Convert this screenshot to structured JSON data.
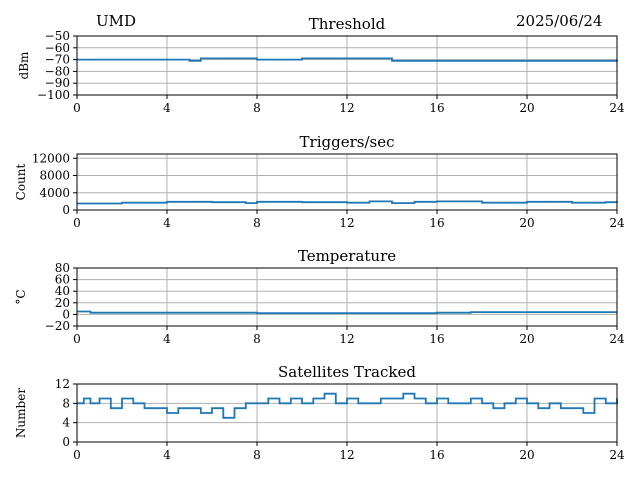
{
  "header": {
    "station": "UMD",
    "date": "2025/06/24"
  },
  "colors": {
    "series": "#1f77b4",
    "grid": "#b0b0b0",
    "axis": "#000000"
  },
  "chart_data": [
    {
      "type": "line",
      "title": "Threshold",
      "xlabel": "",
      "ylabel": "dBm",
      "xlim": [
        0,
        24
      ],
      "ylim": [
        -100,
        -50
      ],
      "xticks": [
        0,
        4,
        8,
        12,
        16,
        20,
        24
      ],
      "yticks": [
        -50,
        -60,
        -70,
        -80,
        -90,
        -100
      ],
      "grid": true,
      "series": [
        {
          "x": [
            0,
            2,
            4,
            5,
            5.5,
            6,
            8,
            10,
            12,
            13,
            14,
            16,
            18,
            20,
            22,
            24
          ],
          "y": [
            -70,
            -70,
            -70,
            -71,
            -69,
            -69,
            -70,
            -69,
            -69,
            -69,
            -71,
            -71,
            -71,
            -71,
            -71,
            -70
          ]
        }
      ]
    },
    {
      "type": "line",
      "title": "Triggers/sec",
      "xlabel": "",
      "ylabel": "Count",
      "xlim": [
        0,
        24
      ],
      "ylim": [
        0,
        13000
      ],
      "xticks": [
        0,
        4,
        8,
        12,
        16,
        20,
        24
      ],
      "yticks": [
        0,
        4000,
        8000,
        12000
      ],
      "grid": true,
      "series": [
        {
          "x": [
            0,
            2,
            4,
            6,
            7.5,
            8,
            10,
            12,
            13,
            14,
            15,
            16,
            18,
            20,
            22,
            23.5,
            24
          ],
          "y": [
            1500,
            1700,
            1900,
            1800,
            1600,
            1900,
            1800,
            1700,
            2000,
            1600,
            1900,
            2000,
            1700,
            1900,
            1700,
            1800,
            1700
          ]
        }
      ]
    },
    {
      "type": "line",
      "title": "Temperature",
      "xlabel": "",
      "ylabel": "°C",
      "xlim": [
        0,
        24
      ],
      "ylim": [
        -20,
        80
      ],
      "xticks": [
        0,
        4,
        8,
        12,
        16,
        20,
        24
      ],
      "yticks": [
        80,
        60,
        40,
        20,
        0,
        -20
      ],
      "grid": true,
      "series": [
        {
          "x": [
            0,
            0.5,
            0.6,
            4,
            7.5,
            8,
            12,
            16,
            17.5,
            20,
            24
          ],
          "y": [
            5,
            5,
            3,
            3,
            3,
            2,
            2,
            3,
            4,
            4,
            4
          ]
        }
      ]
    },
    {
      "type": "line",
      "title": "Satellites Tracked",
      "xlabel": "",
      "ylabel": "Number",
      "xlim": [
        0,
        24
      ],
      "ylim": [
        0,
        12
      ],
      "xticks": [
        0,
        4,
        8,
        12,
        16,
        20,
        24
      ],
      "yticks": [
        0,
        4,
        8,
        12
      ],
      "grid": true,
      "series": [
        {
          "x": [
            0,
            0.3,
            0.6,
            1,
            1.5,
            2,
            2.5,
            3,
            3.5,
            4,
            4.5,
            5,
            5.5,
            6,
            6.5,
            7,
            7.5,
            8,
            8.5,
            9,
            9.5,
            10,
            10.5,
            11,
            11.5,
            12,
            12.5,
            13,
            13.5,
            14,
            14.5,
            15,
            15.5,
            16,
            16.5,
            17,
            17.5,
            18,
            18.5,
            19,
            19.5,
            20,
            20.5,
            21,
            21.5,
            22,
            22.5,
            23,
            23.5,
            24
          ],
          "y": [
            8,
            9,
            8,
            9,
            7,
            9,
            8,
            7,
            7,
            6,
            7,
            7,
            6,
            7,
            5,
            7,
            8,
            8,
            9,
            8,
            9,
            8,
            9,
            10,
            8,
            9,
            8,
            8,
            9,
            9,
            10,
            9,
            8,
            9,
            8,
            8,
            9,
            8,
            7,
            8,
            9,
            8,
            7,
            8,
            7,
            7,
            6,
            9,
            8,
            9
          ]
        }
      ]
    }
  ]
}
